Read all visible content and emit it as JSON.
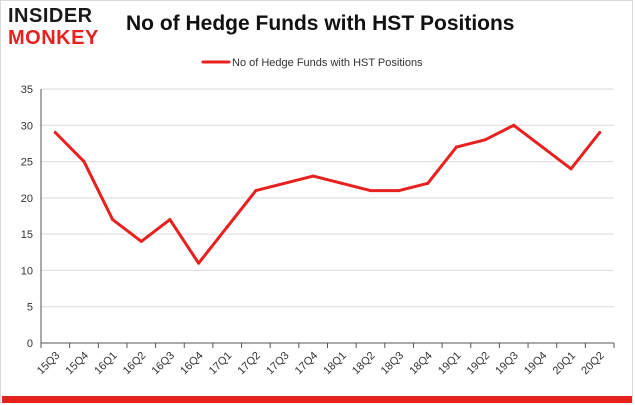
{
  "logo": {
    "line1": "INSIDER",
    "line2": "MONKEY"
  },
  "colors": {
    "accent": "#e8201e",
    "grid": "#d9d9d9",
    "axis": "#555555",
    "text": "#333333"
  },
  "chart_data": {
    "type": "line",
    "title": "No of Hedge Funds with HST Positions",
    "xlabel": "",
    "ylabel": "",
    "categories": [
      "15Q3",
      "15Q4",
      "16Q1",
      "16Q2",
      "16Q3",
      "16Q4",
      "17Q1",
      "17Q2",
      "17Q3",
      "17Q4",
      "18Q1",
      "18Q2",
      "18Q3",
      "18Q4",
      "19Q1",
      "19Q2",
      "19Q3",
      "19Q4",
      "20Q1",
      "20Q2"
    ],
    "series": [
      {
        "name": "No of Hedge Funds with HST Positions",
        "values": [
          29,
          25,
          17,
          14,
          17,
          11,
          16,
          21,
          22,
          23,
          22,
          21,
          21,
          22,
          27,
          28,
          30,
          27,
          24,
          29
        ]
      }
    ],
    "ylim": [
      0,
      35
    ],
    "yticks": [
      0,
      5,
      10,
      15,
      20,
      25,
      30,
      35
    ],
    "grid": true,
    "legend": "top-center"
  }
}
